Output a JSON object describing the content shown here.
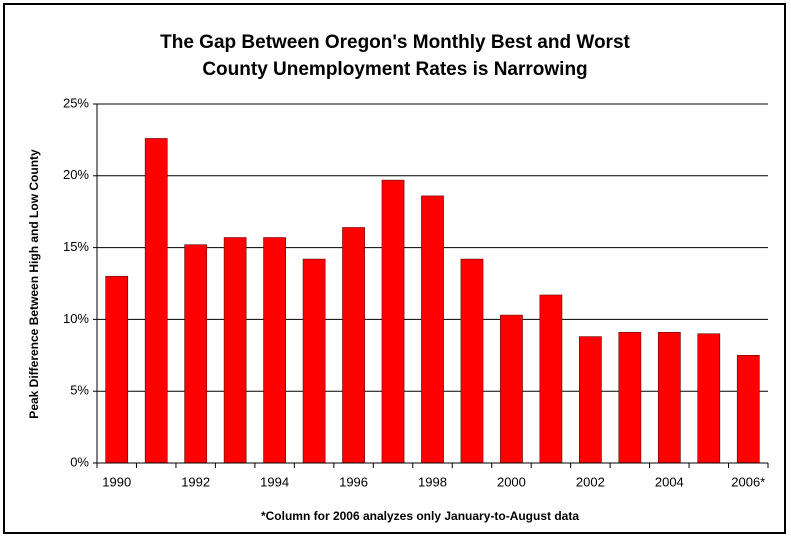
{
  "chart_data": {
    "type": "bar",
    "title": [
      "The Gap Between Oregon's Monthly Best and Worst",
      "County Unemployment Rates is Narrowing"
    ],
    "y_label": "Peak Difference Between High and Low County",
    "footnote": "*Column for 2006 analyzes only January-to-August data",
    "categories": [
      "1990",
      null,
      "1992",
      null,
      "1994",
      null,
      "1996",
      null,
      "1998",
      null,
      "2000",
      null,
      "2002",
      null,
      "2004",
      null,
      "2006*"
    ],
    "values": [
      13.0,
      22.6,
      15.2,
      15.7,
      15.7,
      14.2,
      16.4,
      19.7,
      18.6,
      14.2,
      10.3,
      11.7,
      8.8,
      9.1,
      9.1,
      9.0,
      7.5
    ],
    "color": "#ff0000",
    "ylim": [
      0,
      25
    ],
    "yticks": [
      {
        "value": 0,
        "label": "0%"
      },
      {
        "value": 5,
        "label": "5%"
      },
      {
        "value": 10,
        "label": "10%"
      },
      {
        "value": 15,
        "label": "15%"
      },
      {
        "value": 20,
        "label": "20%"
      },
      {
        "value": 25,
        "label": "25%"
      }
    ],
    "grid": true
  }
}
